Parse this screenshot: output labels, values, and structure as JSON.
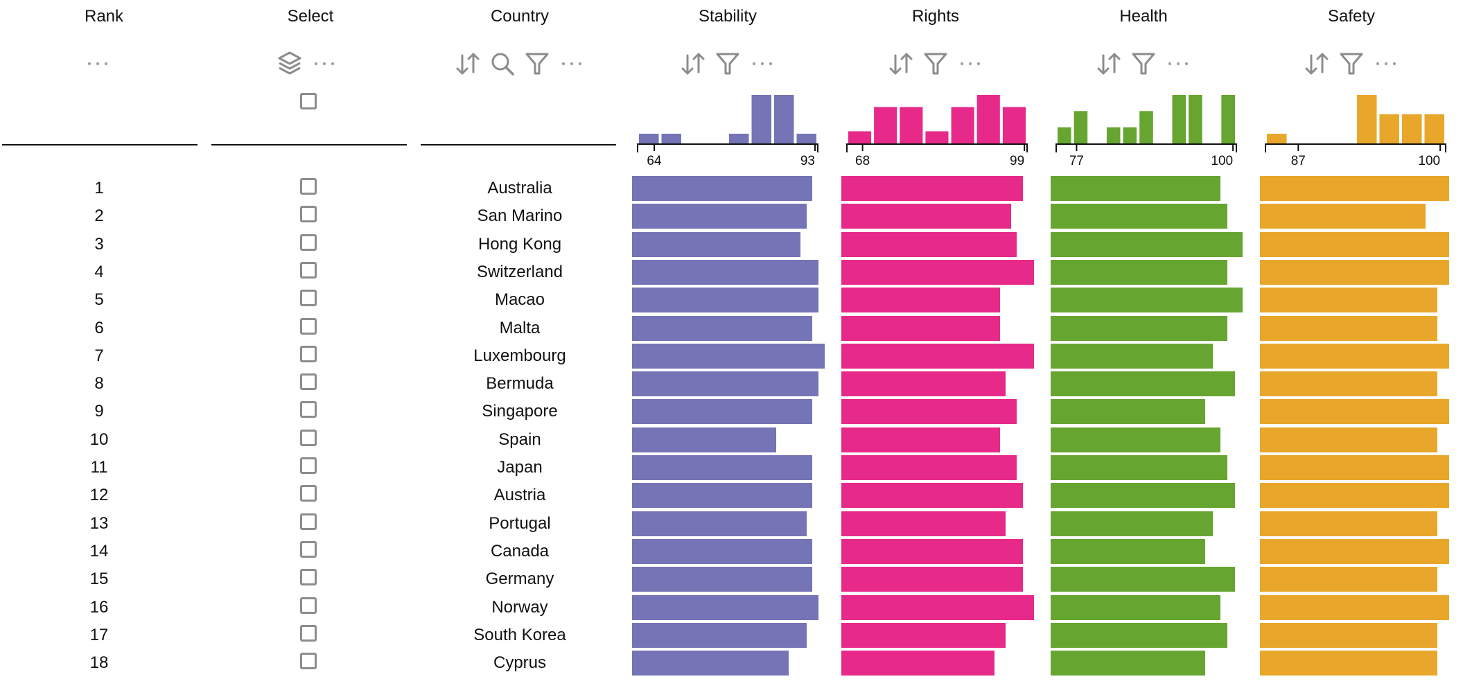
{
  "columns": {
    "rank": "Rank",
    "select": "Select",
    "country": "Country",
    "stability": "Stability",
    "rights": "Rights",
    "health": "Health",
    "safety": "Safety"
  },
  "toolbar": {
    "more": "···"
  },
  "icons": {
    "sort": "sort-icon",
    "search": "search-icon",
    "filter": "filter-icon",
    "layers": "layers-icon",
    "more": "more-icon"
  },
  "colors": {
    "stability": "#7474b6",
    "rights": "#e7298a",
    "health": "#66a630",
    "safety": "#e8a72a"
  },
  "chart_data": {
    "type": "table",
    "categories": [
      "Australia",
      "San Marino",
      "Hong Kong",
      "Switzerland",
      "Macao",
      "Malta",
      "Luxembourg",
      "Bermuda",
      "Singapore",
      "Spain",
      "Japan",
      "Austria",
      "Portugal",
      "Canada",
      "Germany",
      "Norway",
      "South Korea",
      "Cyprus"
    ],
    "ranks": [
      "1",
      "2",
      "3",
      "4",
      "5",
      "6",
      "7",
      "8",
      "9",
      "10",
      "11",
      "12",
      "13",
      "14",
      "15",
      "16",
      "17",
      "18"
    ],
    "series": [
      {
        "name": "Stability",
        "values": [
          91,
          90,
          89,
          92,
          92,
          91,
          93,
          92,
          91,
          85,
          91,
          91,
          90,
          91,
          91,
          92,
          90,
          87
        ],
        "axis_ticks": [
          "64",
          "93"
        ],
        "histogram": [
          1,
          1,
          0,
          0,
          1,
          5,
          5,
          1
        ]
      },
      {
        "name": "Rights",
        "values": [
          97,
          95,
          96,
          99,
          93,
          93,
          99,
          94,
          96,
          93,
          96,
          97,
          94,
          97,
          97,
          99,
          94,
          92
        ],
        "axis_ticks": [
          "68",
          "99"
        ],
        "histogram": [
          1,
          3,
          3,
          1,
          3,
          4,
          3
        ]
      },
      {
        "name": "Health",
        "values": [
          97,
          98,
          100,
          98,
          100,
          98,
          96,
          99,
          95,
          97,
          98,
          99,
          96,
          95,
          99,
          97,
          98,
          95
        ],
        "axis_ticks": [
          "77",
          "100"
        ],
        "histogram": [
          1,
          2,
          0,
          1,
          1,
          2,
          0,
          3,
          3,
          0,
          3
        ]
      },
      {
        "name": "Safety",
        "values": [
          100,
          98,
          100,
          100,
          99,
          99,
          100,
          99,
          100,
          99,
          100,
          100,
          99,
          100,
          99,
          100,
          99,
          99
        ],
        "axis_ticks": [
          "87",
          "100"
        ],
        "histogram": [
          1,
          0,
          0,
          0,
          5,
          3,
          3,
          3
        ]
      }
    ]
  }
}
